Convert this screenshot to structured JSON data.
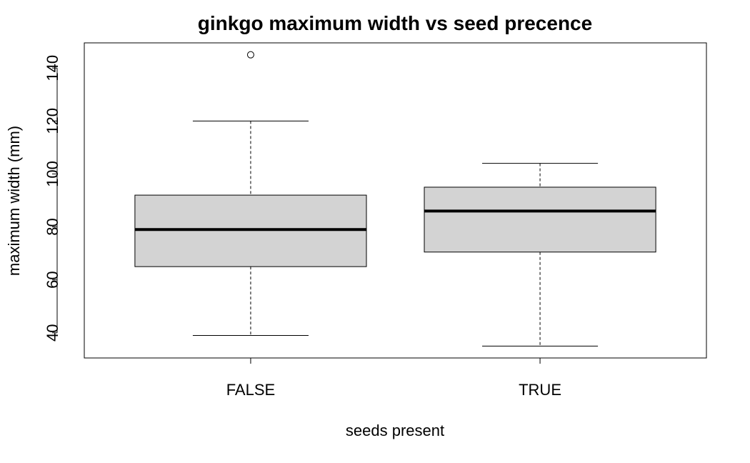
{
  "chart_data": {
    "type": "boxplot",
    "title": "ginkgo maximum width vs seed precence",
    "xlabel": "seeds present",
    "ylabel": "maximum width (mm)",
    "categories": [
      "FALSE",
      "TRUE"
    ],
    "ylim": [
      30.5,
      149.5
    ],
    "yticks": [
      40,
      60,
      80,
      100,
      120,
      140
    ],
    "grid": false,
    "box_color": "#d3d3d3",
    "boxes": [
      {
        "label": "FALSE",
        "whisker_low": 39,
        "q1": 65,
        "median": 79,
        "q3": 92,
        "whisker_high": 120,
        "outliers": [
          145
        ]
      },
      {
        "label": "TRUE",
        "whisker_low": 35,
        "q1": 70.5,
        "median": 86,
        "q3": 95,
        "whisker_high": 104,
        "outliers": []
      }
    ]
  }
}
